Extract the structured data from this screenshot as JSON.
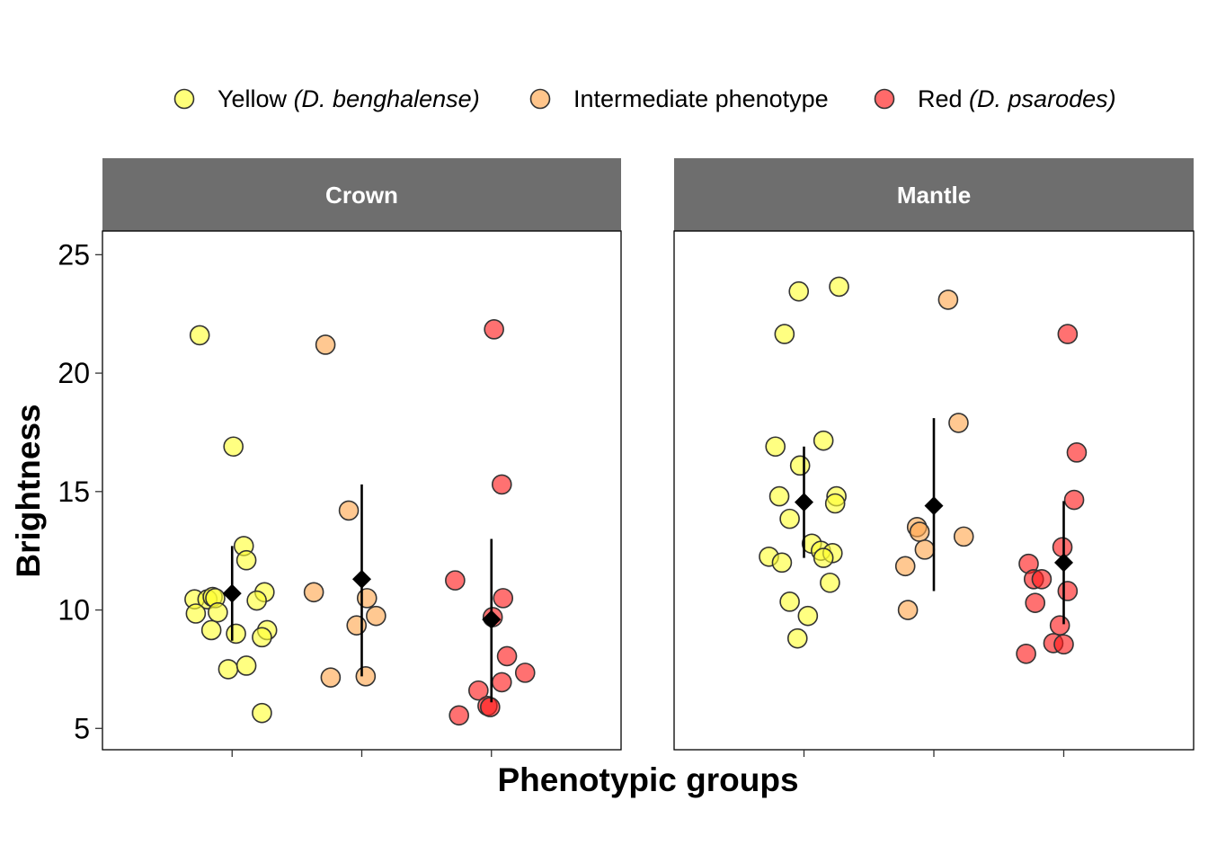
{
  "chart_data": {
    "type": "scatter",
    "title": "",
    "xlabel": "Phenotypic groups",
    "ylabel": "Brightness",
    "ylim": [
      4.1,
      26.0
    ],
    "yticks": [
      5,
      10,
      15,
      20,
      25
    ],
    "legend_position": "top",
    "grid": false,
    "groups": [
      {
        "key": "yellow",
        "label_plain": "Yellow ",
        "label_italic": "(D. benghalense)",
        "color": "#ffff33"
      },
      {
        "key": "intermediate",
        "label_plain": "Intermediate phenotype",
        "label_italic": "",
        "color": "#ffa64d"
      },
      {
        "key": "red",
        "label_plain": "Red ",
        "label_italic": "(D. psarodes)",
        "color": "#ff1a1a"
      }
    ],
    "panels": [
      {
        "name": "Crown",
        "summary": [
          {
            "group": "yellow",
            "mean": 10.7,
            "lower": 8.7,
            "upper": 12.7
          },
          {
            "group": "intermediate",
            "mean": 11.3,
            "lower": 7.2,
            "upper": 15.3
          },
          {
            "group": "red",
            "mean": 9.6,
            "lower": 6.1,
            "upper": 13.0
          }
        ],
        "points": [
          {
            "group": "yellow",
            "offset": -0.25,
            "y": 21.6
          },
          {
            "group": "yellow",
            "offset": 0.01,
            "y": 16.9
          },
          {
            "group": "yellow",
            "offset": 0.09,
            "y": 12.7
          },
          {
            "group": "yellow",
            "offset": 0.11,
            "y": 12.1
          },
          {
            "group": "yellow",
            "offset": -0.29,
            "y": 10.45
          },
          {
            "group": "yellow",
            "offset": -0.19,
            "y": 10.45
          },
          {
            "group": "yellow",
            "offset": -0.15,
            "y": 10.55
          },
          {
            "group": "yellow",
            "offset": -0.13,
            "y": 10.5
          },
          {
            "group": "yellow",
            "offset": 0.25,
            "y": 10.75
          },
          {
            "group": "yellow",
            "offset": 0.19,
            "y": 10.4
          },
          {
            "group": "yellow",
            "offset": -0.28,
            "y": 9.85
          },
          {
            "group": "yellow",
            "offset": -0.11,
            "y": 9.9
          },
          {
            "group": "yellow",
            "offset": -0.16,
            "y": 9.15
          },
          {
            "group": "yellow",
            "offset": 0.27,
            "y": 9.15
          },
          {
            "group": "yellow",
            "offset": 0.23,
            "y": 8.85
          },
          {
            "group": "yellow",
            "offset": 0.03,
            "y": 9.0
          },
          {
            "group": "yellow",
            "offset": -0.03,
            "y": 7.5
          },
          {
            "group": "yellow",
            "offset": 0.11,
            "y": 7.65
          },
          {
            "group": "yellow",
            "offset": 0.23,
            "y": 5.65
          },
          {
            "group": "intermediate",
            "offset": -0.28,
            "y": 21.2
          },
          {
            "group": "intermediate",
            "offset": -0.1,
            "y": 14.2
          },
          {
            "group": "intermediate",
            "offset": -0.37,
            "y": 10.75
          },
          {
            "group": "intermediate",
            "offset": 0.04,
            "y": 10.5
          },
          {
            "group": "intermediate",
            "offset": 0.11,
            "y": 9.75
          },
          {
            "group": "intermediate",
            "offset": -0.04,
            "y": 9.35
          },
          {
            "group": "intermediate",
            "offset": -0.24,
            "y": 7.15
          },
          {
            "group": "intermediate",
            "offset": 0.03,
            "y": 7.2
          },
          {
            "group": "red",
            "offset": 0.02,
            "y": 21.85
          },
          {
            "group": "red",
            "offset": 0.08,
            "y": 15.3
          },
          {
            "group": "red",
            "offset": -0.28,
            "y": 11.25
          },
          {
            "group": "red",
            "offset": 0.09,
            "y": 10.5
          },
          {
            "group": "red",
            "offset": 0.01,
            "y": 9.7
          },
          {
            "group": "red",
            "offset": 0.12,
            "y": 8.05
          },
          {
            "group": "red",
            "offset": 0.26,
            "y": 7.35
          },
          {
            "group": "red",
            "offset": 0.08,
            "y": 6.95
          },
          {
            "group": "red",
            "offset": -0.1,
            "y": 6.6
          },
          {
            "group": "red",
            "offset": -0.03,
            "y": 5.95
          },
          {
            "group": "red",
            "offset": -0.01,
            "y": 5.9
          },
          {
            "group": "red",
            "offset": -0.25,
            "y": 5.55
          }
        ]
      },
      {
        "name": "Mantle",
        "summary": [
          {
            "group": "yellow",
            "mean": 14.55,
            "lower": 12.2,
            "upper": 16.9
          },
          {
            "group": "intermediate",
            "mean": 14.4,
            "lower": 10.8,
            "upper": 18.1
          },
          {
            "group": "red",
            "mean": 12.0,
            "lower": 9.4,
            "upper": 14.6
          }
        ],
        "points": [
          {
            "group": "yellow",
            "offset": 0.27,
            "y": 23.65
          },
          {
            "group": "yellow",
            "offset": -0.04,
            "y": 23.45
          },
          {
            "group": "yellow",
            "offset": -0.15,
            "y": 21.65
          },
          {
            "group": "yellow",
            "offset": 0.15,
            "y": 17.15
          },
          {
            "group": "yellow",
            "offset": -0.22,
            "y": 16.9
          },
          {
            "group": "yellow",
            "offset": -0.03,
            "y": 16.1
          },
          {
            "group": "yellow",
            "offset": -0.19,
            "y": 14.8
          },
          {
            "group": "yellow",
            "offset": 0.25,
            "y": 14.8
          },
          {
            "group": "yellow",
            "offset": 0.24,
            "y": 14.5
          },
          {
            "group": "yellow",
            "offset": -0.11,
            "y": 13.85
          },
          {
            "group": "yellow",
            "offset": 0.06,
            "y": 12.8
          },
          {
            "group": "yellow",
            "offset": 0.13,
            "y": 12.5
          },
          {
            "group": "yellow",
            "offset": 0.22,
            "y": 12.4
          },
          {
            "group": "yellow",
            "offset": 0.15,
            "y": 12.2
          },
          {
            "group": "yellow",
            "offset": -0.27,
            "y": 12.25
          },
          {
            "group": "yellow",
            "offset": -0.17,
            "y": 12.0
          },
          {
            "group": "yellow",
            "offset": 0.2,
            "y": 11.15
          },
          {
            "group": "yellow",
            "offset": -0.11,
            "y": 10.35
          },
          {
            "group": "yellow",
            "offset": 0.03,
            "y": 9.75
          },
          {
            "group": "yellow",
            "offset": -0.05,
            "y": 8.8
          },
          {
            "group": "intermediate",
            "offset": 0.11,
            "y": 23.1
          },
          {
            "group": "intermediate",
            "offset": 0.19,
            "y": 17.9
          },
          {
            "group": "intermediate",
            "offset": -0.13,
            "y": 13.5
          },
          {
            "group": "intermediate",
            "offset": -0.11,
            "y": 13.3
          },
          {
            "group": "intermediate",
            "offset": 0.23,
            "y": 13.1
          },
          {
            "group": "intermediate",
            "offset": -0.07,
            "y": 12.55
          },
          {
            "group": "intermediate",
            "offset": -0.22,
            "y": 11.85
          },
          {
            "group": "intermediate",
            "offset": -0.2,
            "y": 10.0
          },
          {
            "group": "red",
            "offset": 0.03,
            "y": 21.65
          },
          {
            "group": "red",
            "offset": 0.1,
            "y": 16.65
          },
          {
            "group": "red",
            "offset": 0.08,
            "y": 14.65
          },
          {
            "group": "red",
            "offset": -0.01,
            "y": 12.65
          },
          {
            "group": "red",
            "offset": -0.27,
            "y": 11.95
          },
          {
            "group": "red",
            "offset": -0.23,
            "y": 11.3
          },
          {
            "group": "red",
            "offset": -0.17,
            "y": 11.3
          },
          {
            "group": "red",
            "offset": -0.22,
            "y": 10.3
          },
          {
            "group": "red",
            "offset": 0.03,
            "y": 10.8
          },
          {
            "group": "red",
            "offset": -0.03,
            "y": 9.35
          },
          {
            "group": "red",
            "offset": -0.08,
            "y": 8.6
          },
          {
            "group": "red",
            "offset": 0.0,
            "y": 8.55
          },
          {
            "group": "red",
            "offset": -0.29,
            "y": 8.15
          }
        ]
      }
    ]
  }
}
